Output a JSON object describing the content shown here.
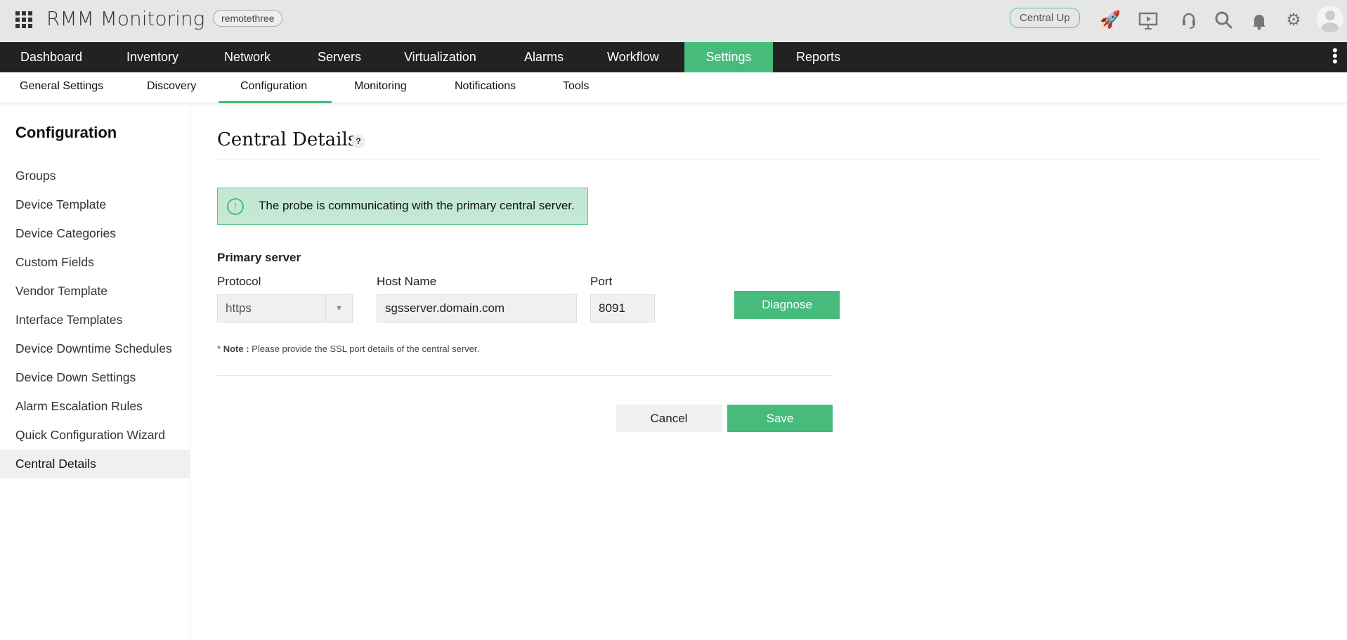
{
  "header": {
    "app_name": "RMM Monitoring",
    "probe_name": "remotethree",
    "central_status": "Central Up",
    "icons": [
      "apps-grid-icon",
      "rocket-icon",
      "presentation-icon",
      "headset-icon",
      "search-icon",
      "bell-icon",
      "gear-icon",
      "user-avatar-icon"
    ]
  },
  "nav": {
    "items": [
      {
        "label": "Dashboard"
      },
      {
        "label": "Inventory"
      },
      {
        "label": "Network"
      },
      {
        "label": "Servers"
      },
      {
        "label": "Virtualization"
      },
      {
        "label": "Alarms"
      },
      {
        "label": "Workflow"
      },
      {
        "label": "Settings",
        "active": true
      },
      {
        "label": "Reports"
      }
    ]
  },
  "subnav": {
    "items": [
      {
        "label": "General Settings"
      },
      {
        "label": "Discovery"
      },
      {
        "label": "Configuration",
        "active": true
      },
      {
        "label": "Monitoring"
      },
      {
        "label": "Notifications"
      },
      {
        "label": "Tools"
      }
    ]
  },
  "sidebar": {
    "title": "Configuration",
    "items": [
      {
        "label": "Groups"
      },
      {
        "label": "Device Template"
      },
      {
        "label": "Device Categories"
      },
      {
        "label": "Custom Fields"
      },
      {
        "label": "Vendor Template"
      },
      {
        "label": "Interface Templates"
      },
      {
        "label": "Device Downtime Schedules"
      },
      {
        "label": "Device Down Settings"
      },
      {
        "label": "Alarm Escalation Rules"
      },
      {
        "label": "Quick Configuration Wizard"
      },
      {
        "label": "Central Details",
        "active": true
      }
    ]
  },
  "main": {
    "title": "Central Details",
    "help": "?",
    "alert": "The probe is communicating with the primary central server.",
    "section": "Primary server",
    "protocol_label": "Protocol",
    "protocol_value": "https",
    "host_label": "Host Name",
    "host_value": "sgsserver.domain.com",
    "port_label": "Port",
    "port_value": "8091",
    "diagnose": "Diagnose",
    "note_star": "*",
    "note_bold": "Note :",
    "note_text": " Please provide the SSL port details of the central server.",
    "cancel": "Cancel",
    "save": "Save"
  },
  "colors": {
    "accent": "#46bb7b",
    "nav_bg": "#222222",
    "alert_bg": "#c5e8d4"
  }
}
